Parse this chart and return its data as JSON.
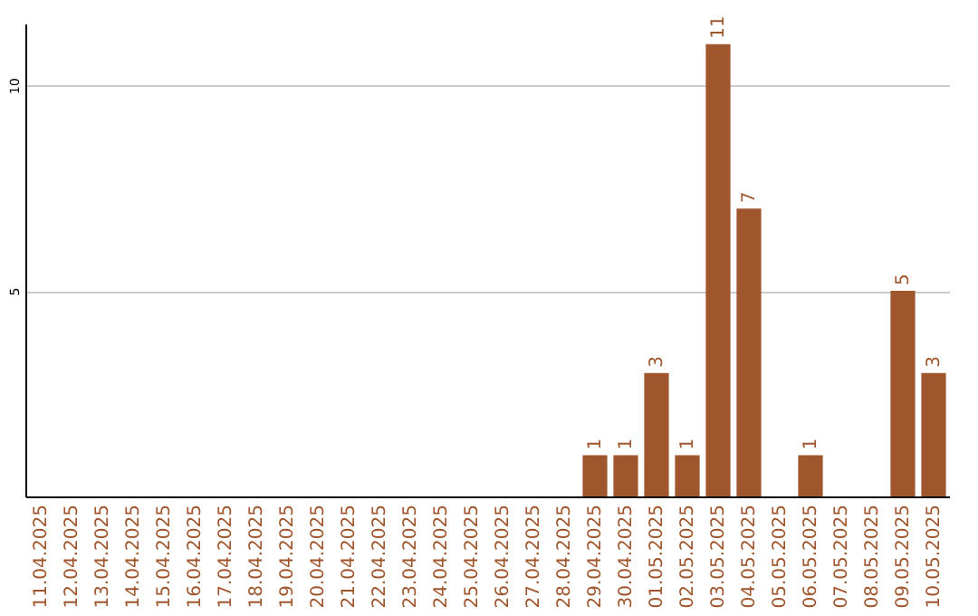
{
  "chart_data": {
    "type": "bar",
    "categories": [
      "11.04.2025",
      "12.04.2025",
      "13.04.2025",
      "14.04.2025",
      "15.04.2025",
      "16.04.2025",
      "17.04.2025",
      "18.04.2025",
      "19.04.2025",
      "20.04.2025",
      "21.04.2025",
      "22.04.2025",
      "23.04.2025",
      "24.04.2025",
      "25.04.2025",
      "26.04.2025",
      "27.04.2025",
      "28.04.2025",
      "29.04.2025",
      "30.04.2025",
      "01.05.2025",
      "02.05.2025",
      "03.05.2025",
      "04.05.2025",
      "05.05.2025",
      "06.05.2025",
      "07.05.2025",
      "08.05.2025",
      "09.05.2025",
      "10.05.2025"
    ],
    "values": [
      0,
      0,
      0,
      0,
      0,
      0,
      0,
      0,
      0,
      0,
      0,
      0,
      0,
      0,
      0,
      0,
      0,
      0,
      1,
      1,
      3,
      1,
      11,
      7,
      0,
      1,
      0,
      0,
      5,
      3
    ],
    "value_labels": [
      null,
      null,
      null,
      null,
      null,
      null,
      null,
      null,
      null,
      null,
      null,
      null,
      null,
      null,
      null,
      null,
      null,
      null,
      "1",
      "1",
      "3",
      "1",
      "11",
      "7",
      null,
      "1",
      null,
      null,
      "5",
      "3"
    ],
    "color": "#a0562c",
    "ylim": [
      0,
      11.5
    ],
    "yticks": [
      5,
      10
    ],
    "grid": "y"
  }
}
